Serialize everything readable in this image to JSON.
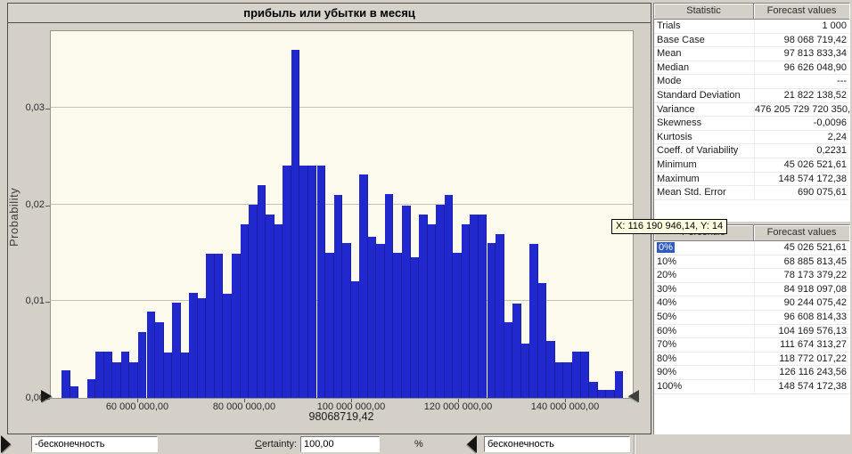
{
  "window": {
    "title": "прибыль или убытки в месяц"
  },
  "chart": {
    "title": "прибыль или убытки в месяц",
    "ylabel": "Probability",
    "tooltip": "X: 116 190 946,14, Y: 14",
    "base_value_label": "98068719,42"
  },
  "chart_data": {
    "type": "bar",
    "title": "прибыль или убытки в месяц",
    "xlabel": "",
    "ylabel": "Probability",
    "ylim": [
      0,
      0.038
    ],
    "xlim": [
      44500000,
      150000000
    ],
    "grid": true,
    "y_ticks": [
      {
        "label": "0,00",
        "value": 0.0
      },
      {
        "label": "0,01",
        "value": 0.01
      },
      {
        "label": "0,02",
        "value": 0.02
      },
      {
        "label": "0,03",
        "value": 0.03
      }
    ],
    "x_ticks": [
      {
        "label": "60 000 000,00",
        "value": 60000000
      },
      {
        "label": "80 000 000,00",
        "value": 80000000
      },
      {
        "label": "100 000 000,00",
        "value": 100000000
      },
      {
        "label": "120 000 000,00",
        "value": 120000000
      },
      {
        "label": "140 000 000,00",
        "value": 140000000
      }
    ],
    "bin_start_value": 45500000,
    "bin_width_value": 1590000,
    "values": [
      0.0029,
      0.0012,
      0,
      0.0019,
      0.0048,
      0.0048,
      0.0037,
      0.0048,
      0.0037,
      0.0068,
      0.0089,
      0.0078,
      0.0047,
      0.0099,
      0.0047,
      0.0109,
      0.0103,
      0.0149,
      0.0149,
      0.0108,
      0.0149,
      0.018,
      0.02,
      0.022,
      0.019,
      0.018,
      0.0241,
      0.036,
      0.0241,
      0.0241,
      0.0241,
      0.015,
      0.021,
      0.016,
      0.0121,
      0.0231,
      0.0167,
      0.0159,
      0.0211,
      0.015,
      0.0199,
      0.0146,
      0.019,
      0.018,
      0.02,
      0.021,
      0.015,
      0.018,
      0.019,
      0.019,
      0.016,
      0.017,
      0.0078,
      0.0098,
      0.0056,
      0.0159,
      0.0119,
      0.0059,
      0.0037,
      0.0037,
      0.0048,
      0.0048,
      0.0017,
      0.0008,
      0.0008,
      0.0028
    ],
    "annotations": [
      {
        "text": "98068719,42",
        "x_value": 98068719.42
      },
      {
        "text": "X: 116 190 946,14, Y: 14",
        "kind": "tooltip"
      }
    ],
    "bar_color": "#2129ce",
    "plot_bg_color": "#fbfaec"
  },
  "stats_table": {
    "header": [
      "Statistic",
      "Forecast values"
    ],
    "rows": [
      [
        "Trials",
        "1 000"
      ],
      [
        "Base Case",
        "98 068 719,42"
      ],
      [
        "Mean",
        "97 813 833,34"
      ],
      [
        "Median",
        "96 626 048,90"
      ],
      [
        "Mode",
        "---"
      ],
      [
        "Standard Deviation",
        "21 822 138,52"
      ],
      [
        "Variance",
        "476 205 729 720 350,"
      ],
      [
        "Skewness",
        "-0,0096"
      ],
      [
        "Kurtosis",
        "2,24"
      ],
      [
        "Coeff. of Variability",
        "0,2231"
      ],
      [
        "Minimum",
        "45 026 521,61"
      ],
      [
        "Maximum",
        "148 574 172,38"
      ],
      [
        "Mean Std. Error",
        "690 075,61"
      ]
    ]
  },
  "percentile_table": {
    "header": [
      "Percentile",
      "Forecast values"
    ],
    "selected_index": 0,
    "rows": [
      [
        "0%",
        "45 026 521,61"
      ],
      [
        "10%",
        "68 885 813,45"
      ],
      [
        "20%",
        "78 173 379,22"
      ],
      [
        "30%",
        "84 918 097,08"
      ],
      [
        "40%",
        "90 244 075,42"
      ],
      [
        "50%",
        "96 608 814,33"
      ],
      [
        "60%",
        "104 169 576,13"
      ],
      [
        "70%",
        "111 674 313,27"
      ],
      [
        "80%",
        "118 772 017,22"
      ],
      [
        "90%",
        "126 116 243,56"
      ],
      [
        "100%",
        "148 574 172,38"
      ]
    ]
  },
  "controls": {
    "range_min_value": "-бесконечность",
    "certainty_label": "Certainty:",
    "certainty_value": "100,00",
    "percent_label": "%",
    "range_max_value": "бесконечность"
  },
  "colors": {
    "bar": "#2129ce",
    "plot_background": "#fbfaec",
    "window_background": "#d4d0c8",
    "selection": "#2e5bbd",
    "tooltip_background": "#ffffe1"
  }
}
